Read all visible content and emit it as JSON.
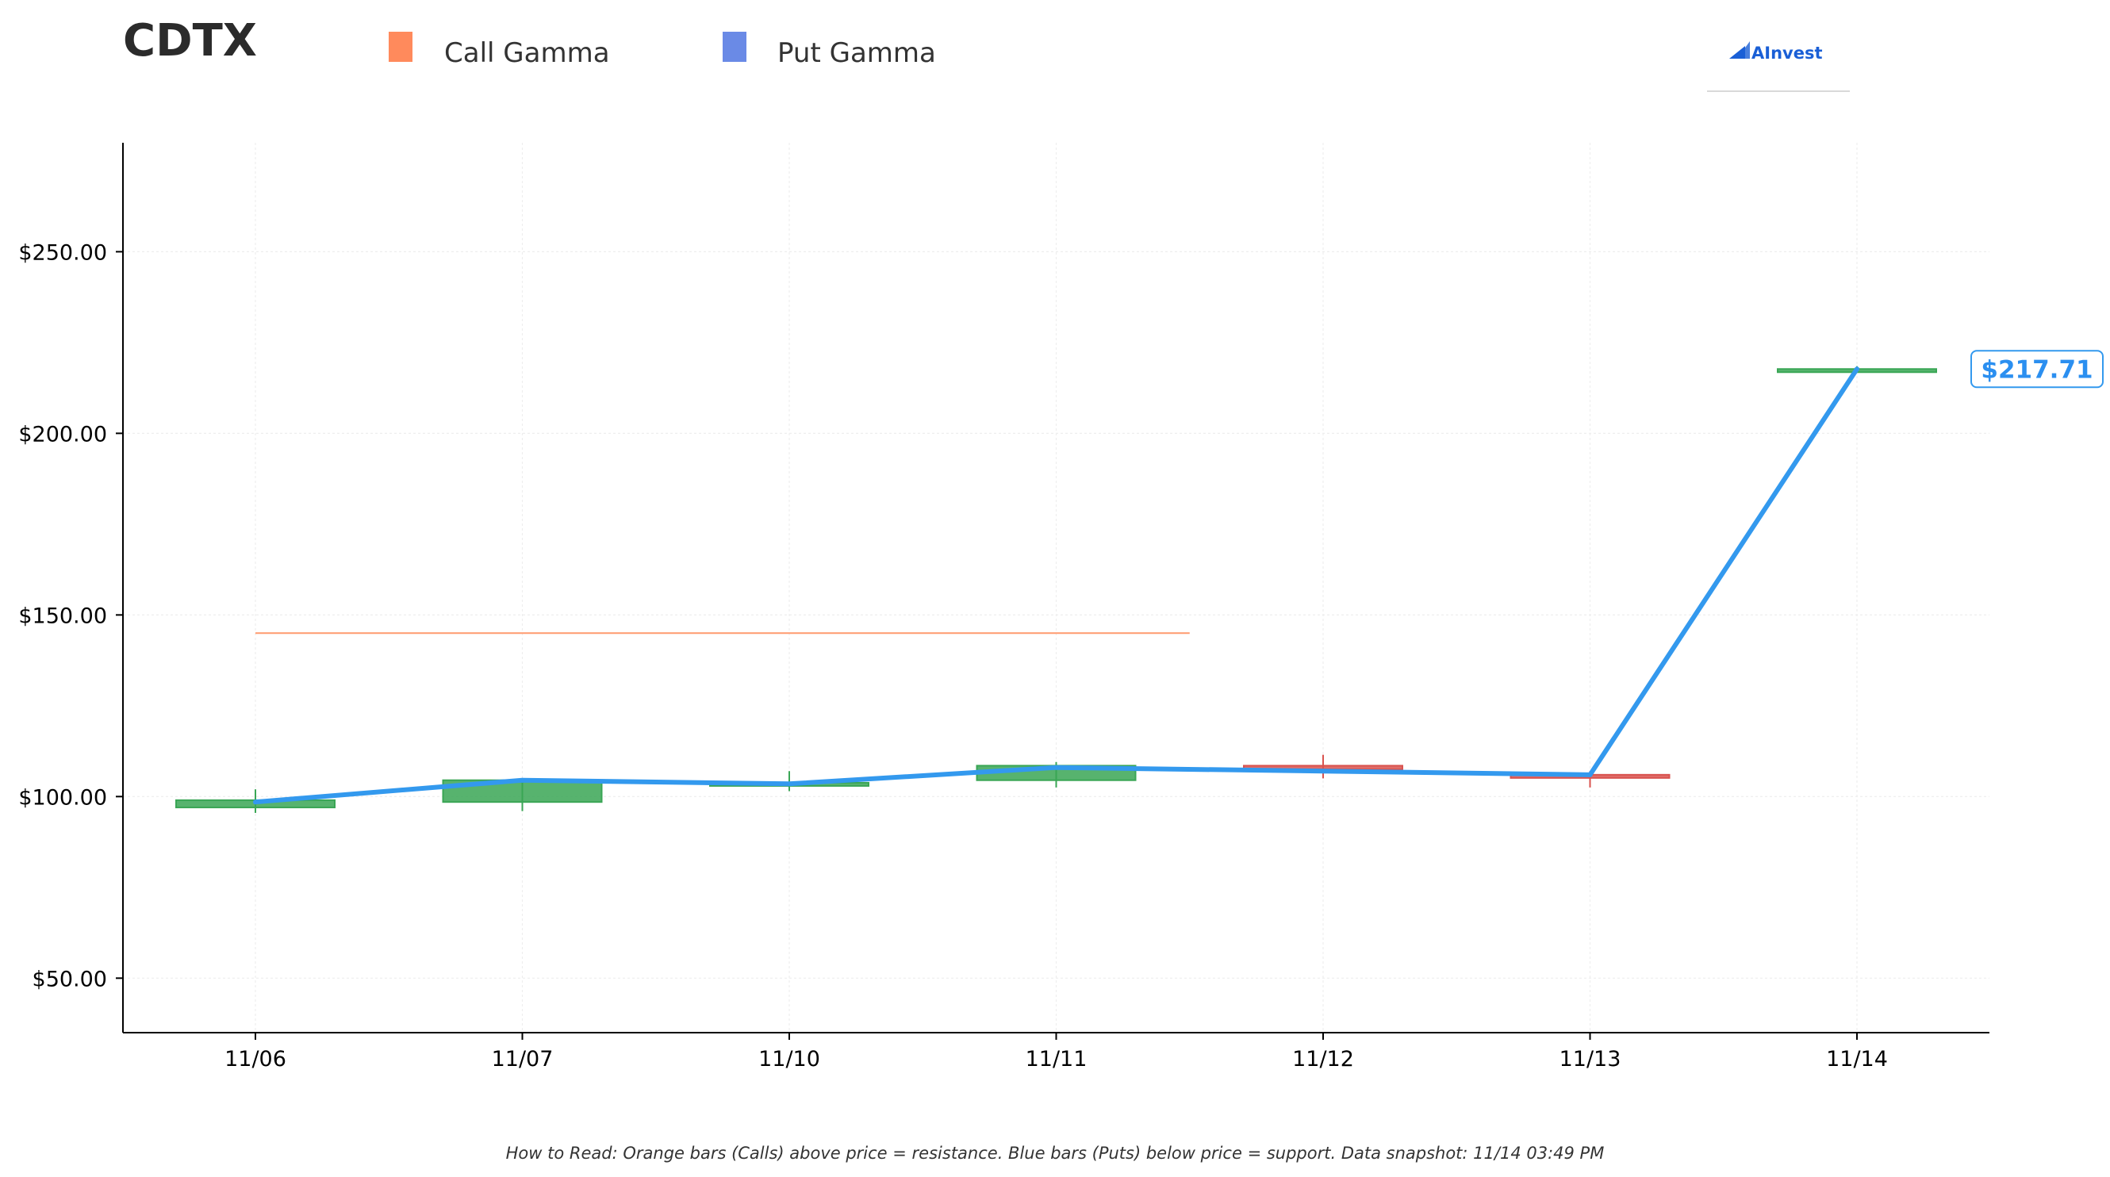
{
  "brand": {
    "logo_text": "AInvest"
  },
  "footer": {
    "text": "How to Read: Orange bars (Calls) above price = resistance. Blue bars (Puts) below price = support. Data snapshot: 11/14 03:49 PM"
  },
  "price_label": "$217.71",
  "colors": {
    "call": "#ff8a5c",
    "put": "#6a8ae6",
    "up": "#3aa655",
    "down": "#d9534f",
    "price_line": "#3399ee",
    "call_level_line": "#ff9a6e"
  },
  "chart_data": {
    "type": "line",
    "title": "CDTX",
    "legend": [
      {
        "name": "Call Gamma",
        "color": "#ff8a5c"
      },
      {
        "name": "Put Gamma",
        "color": "#6a8ae6"
      }
    ],
    "legend_placement": "top",
    "categories": [
      "11/06",
      "11/07",
      "11/10",
      "11/11",
      "11/12",
      "11/13",
      "11/14"
    ],
    "candles": [
      {
        "date": "11/06",
        "open": 97,
        "close": 99,
        "high": 102,
        "low": 95.5,
        "direction": "up"
      },
      {
        "date": "11/07",
        "open": 98.5,
        "close": 104.5,
        "high": 105,
        "low": 96,
        "direction": "up"
      },
      {
        "date": "11/10",
        "open": 103,
        "close": 103.8,
        "high": 107,
        "low": 101.5,
        "direction": "up"
      },
      {
        "date": "11/11",
        "open": 104.5,
        "close": 108.5,
        "high": 109.5,
        "low": 102.5,
        "direction": "up"
      },
      {
        "date": "11/12",
        "open": 108.5,
        "close": 107.5,
        "high": 111.5,
        "low": 105,
        "direction": "down"
      },
      {
        "date": "11/13",
        "open": 106,
        "close": 106,
        "high": 107,
        "low": 102.5,
        "direction": "down"
      },
      {
        "date": "11/14",
        "open": 217.71,
        "close": 217.71,
        "high": 218.5,
        "low": 217.2,
        "direction": "up"
      }
    ],
    "series": [
      {
        "values": [
          98.5,
          104.5,
          103.5,
          108,
          107,
          106,
          217.71
        ]
      }
    ],
    "call_gamma_levels": [
      {
        "price": 145,
        "from": "11/06",
        "to": "11/11"
      }
    ],
    "current_price": 217.71,
    "yticks": [
      50,
      100,
      150,
      200,
      250
    ],
    "ytick_labels": [
      "$50.00",
      "$100.00",
      "$150.00",
      "$200.00",
      "$250.00"
    ],
    "ylim": [
      35,
      280
    ],
    "xlabel": "",
    "ylabel": "",
    "grid": true
  }
}
